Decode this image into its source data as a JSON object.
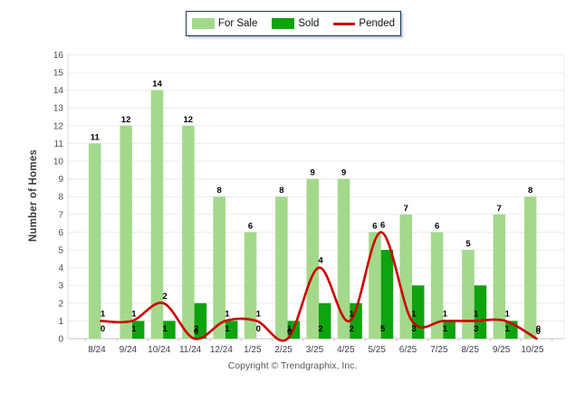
{
  "chart_data": {
    "type": "bar",
    "subtype": "grouped-bars-with-line-overlay",
    "categories": [
      "8/24",
      "9/24",
      "10/24",
      "11/24",
      "12/24",
      "1/25",
      "2/25",
      "3/25",
      "4/25",
      "5/25",
      "6/25",
      "7/25",
      "8/25",
      "9/25",
      "10/25"
    ],
    "series": [
      {
        "name": "For Sale",
        "type": "bar",
        "color": "#a3d98a",
        "values": [
          11,
          12,
          14,
          12,
          8,
          6,
          8,
          9,
          9,
          6,
          7,
          6,
          5,
          7,
          8
        ]
      },
      {
        "name": "Sold",
        "type": "bar",
        "color": "#0fa30f",
        "values": [
          0,
          1,
          1,
          2,
          1,
          0,
          1,
          2,
          2,
          5,
          3,
          1,
          3,
          1,
          0
        ]
      },
      {
        "name": "Pended",
        "type": "line",
        "color": "#cb0101",
        "values": [
          1,
          1,
          2,
          0,
          1,
          1,
          0,
          4,
          1,
          6,
          1,
          1,
          1,
          1,
          0
        ]
      }
    ],
    "title": "",
    "xlabel": "",
    "ylabel": "Number of Homes",
    "ylim": [
      0,
      16
    ],
    "ytick_step": 1,
    "grid": true,
    "legend_position": "top"
  },
  "footer": {
    "text": "Copyright © Trendgraphix, Inc."
  }
}
